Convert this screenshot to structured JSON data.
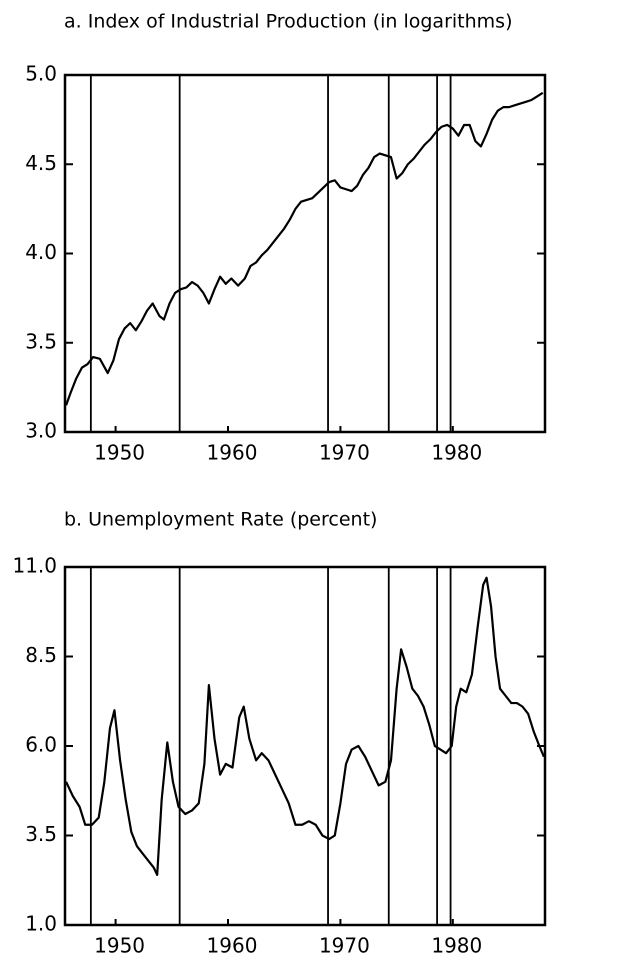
{
  "chart_data": [
    {
      "type": "line",
      "title": "a. Index of Industrial Production (in logarithms)",
      "xlim": [
        1945.5,
        1988.2
      ],
      "xticks": [
        1950,
        1960,
        1970,
        1980
      ],
      "ylim": [
        3.0,
        5.0
      ],
      "yticks": [
        {
          "value": 3.0,
          "label": "3.0"
        },
        3.5,
        {
          "value": 4.0,
          "label": "4.0"
        },
        4.5,
        {
          "value": 5.0,
          "label": "5.0"
        }
      ],
      "vlines": [
        1947.8,
        1955.7,
        1968.9,
        1974.3,
        1978.6,
        1979.8
      ],
      "series": [
        {
          "color": "#000000",
          "x": [
            1945.6,
            1946.0,
            1946.5,
            1947.0,
            1947.5,
            1948.0,
            1948.6,
            1949.3,
            1949.8,
            1950.3,
            1950.8,
            1951.3,
            1951.8,
            1952.3,
            1952.8,
            1953.3,
            1953.9,
            1954.3,
            1954.8,
            1955.3,
            1955.8,
            1956.3,
            1956.8,
            1957.3,
            1957.8,
            1958.3,
            1958.8,
            1959.3,
            1959.8,
            1960.3,
            1960.9,
            1961.5,
            1962.0,
            1962.5,
            1963.0,
            1963.5,
            1964.0,
            1964.5,
            1965.0,
            1965.5,
            1966.0,
            1966.5,
            1967.0,
            1967.5,
            1968.0,
            1968.5,
            1969.0,
            1969.5,
            1970.0,
            1970.5,
            1971.0,
            1971.5,
            1972.0,
            1972.5,
            1973.0,
            1973.5,
            1974.0,
            1974.5,
            1975.0,
            1975.5,
            1976.0,
            1976.5,
            1977.0,
            1977.5,
            1978.0,
            1978.5,
            1979.0,
            1979.5,
            1980.0,
            1980.5,
            1981.0,
            1981.5,
            1982.0,
            1982.5,
            1983.0,
            1983.5,
            1984.0,
            1984.5,
            1985.0,
            1985.5,
            1986.0,
            1986.5,
            1987.0,
            1987.5,
            1988.0
          ],
          "values": [
            3.15,
            3.22,
            3.3,
            3.36,
            3.38,
            3.42,
            3.41,
            3.33,
            3.4,
            3.52,
            3.58,
            3.61,
            3.57,
            3.62,
            3.68,
            3.72,
            3.65,
            3.63,
            3.72,
            3.78,
            3.8,
            3.81,
            3.84,
            3.82,
            3.78,
            3.72,
            3.8,
            3.87,
            3.83,
            3.86,
            3.82,
            3.86,
            3.93,
            3.95,
            3.99,
            4.02,
            4.06,
            4.1,
            4.14,
            4.19,
            4.25,
            4.29,
            4.3,
            4.31,
            4.34,
            4.37,
            4.4,
            4.41,
            4.37,
            4.36,
            4.35,
            4.38,
            4.44,
            4.48,
            4.54,
            4.56,
            4.55,
            4.54,
            4.42,
            4.45,
            4.5,
            4.53,
            4.57,
            4.61,
            4.64,
            4.68,
            4.71,
            4.72,
            4.7,
            4.66,
            4.72,
            4.72,
            4.63,
            4.6,
            4.67,
            4.75,
            4.8,
            4.82,
            4.82,
            4.83,
            4.84,
            4.85,
            4.86,
            4.88,
            4.9
          ]
        }
      ]
    },
    {
      "type": "line",
      "title": "b. Unemployment Rate (percent)",
      "xlim": [
        1945.5,
        1988.2
      ],
      "xticks": [
        1950,
        1960,
        1970,
        1980
      ],
      "ylim": [
        1.0,
        11.0
      ],
      "yticks": [
        {
          "value": 1.0,
          "label": "1.0"
        },
        3.5,
        {
          "value": 6.0,
          "label": "6.0"
        },
        8.5,
        {
          "value": 11.0,
          "label": "11.0"
        }
      ],
      "vlines": [
        1947.8,
        1955.7,
        1968.9,
        1974.3,
        1978.6,
        1979.8
      ],
      "series": [
        {
          "color": "#000000",
          "x": [
            1945.6,
            1946.2,
            1946.8,
            1947.3,
            1947.9,
            1948.5,
            1949.0,
            1949.5,
            1949.9,
            1950.4,
            1950.9,
            1951.4,
            1951.9,
            1952.4,
            1952.9,
            1953.4,
            1953.7,
            1954.1,
            1954.6,
            1955.1,
            1955.6,
            1956.2,
            1956.8,
            1957.4,
            1957.9,
            1958.3,
            1958.8,
            1959.3,
            1959.8,
            1960.4,
            1961.0,
            1961.4,
            1961.9,
            1962.5,
            1963.0,
            1963.6,
            1964.2,
            1964.8,
            1965.4,
            1966.0,
            1966.6,
            1967.2,
            1967.8,
            1968.4,
            1969.0,
            1969.5,
            1970.0,
            1970.5,
            1971.0,
            1971.6,
            1972.2,
            1972.8,
            1973.4,
            1974.0,
            1974.5,
            1975.0,
            1975.4,
            1975.9,
            1976.4,
            1976.9,
            1977.4,
            1977.9,
            1978.4,
            1978.9,
            1979.4,
            1979.9,
            1980.3,
            1980.7,
            1981.2,
            1981.7,
            1982.2,
            1982.7,
            1983.0,
            1983.4,
            1983.8,
            1984.2,
            1984.7,
            1985.2,
            1985.7,
            1986.2,
            1986.7,
            1987.2,
            1987.7,
            1988.1
          ],
          "values": [
            5.0,
            4.6,
            4.3,
            3.8,
            3.8,
            4.0,
            5.0,
            6.5,
            7.0,
            5.6,
            4.5,
            3.6,
            3.2,
            3.0,
            2.8,
            2.6,
            2.4,
            4.5,
            6.1,
            5.0,
            4.3,
            4.1,
            4.2,
            4.4,
            5.5,
            7.7,
            6.2,
            5.2,
            5.5,
            5.4,
            6.8,
            7.1,
            6.2,
            5.6,
            5.8,
            5.6,
            5.2,
            4.8,
            4.4,
            3.8,
            3.8,
            3.9,
            3.8,
            3.5,
            3.4,
            3.5,
            4.4,
            5.5,
            5.9,
            6.0,
            5.7,
            5.3,
            4.9,
            5.0,
            5.6,
            7.6,
            8.7,
            8.2,
            7.6,
            7.4,
            7.1,
            6.6,
            6.0,
            5.9,
            5.8,
            6.0,
            7.1,
            7.6,
            7.5,
            8.0,
            9.3,
            10.5,
            10.7,
            9.9,
            8.5,
            7.6,
            7.4,
            7.2,
            7.2,
            7.1,
            6.9,
            6.4,
            6.0,
            5.7
          ]
        }
      ]
    }
  ]
}
